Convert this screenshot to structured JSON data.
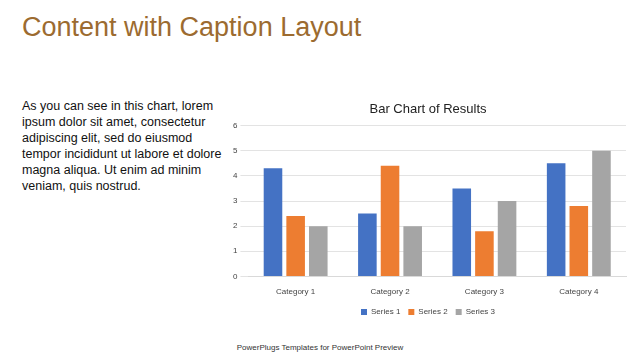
{
  "slide": {
    "title": "Content with Caption Layout",
    "caption": "As you can see in this chart, lorem ipsum dolor sit amet, consectetur adipiscing elit, sed do eiusmod tempor incididunt ut labore et dolore magna aliqua. Ut enim ad minim veniam, quis nostrud.",
    "footer": "PowerPlugs Templates for PowerPoint Preview"
  },
  "chart_data": {
    "type": "bar",
    "title": "Bar Chart of Results",
    "categories": [
      "Category 1",
      "Category 2",
      "Category 3",
      "Category 4"
    ],
    "series": [
      {
        "name": "Series 1",
        "color": "#4472c4",
        "values": [
          4.3,
          2.5,
          3.5,
          4.5
        ]
      },
      {
        "name": "Series 2",
        "color": "#ed7d31",
        "values": [
          2.4,
          4.4,
          1.8,
          2.8
        ]
      },
      {
        "name": "Series 3",
        "color": "#a5a5a5",
        "values": [
          2,
          2,
          3,
          5
        ]
      }
    ],
    "ylim": [
      0,
      6
    ],
    "yticks": [
      0,
      1,
      2,
      3,
      4,
      5,
      6
    ],
    "grid": true,
    "legend": "bottom"
  }
}
